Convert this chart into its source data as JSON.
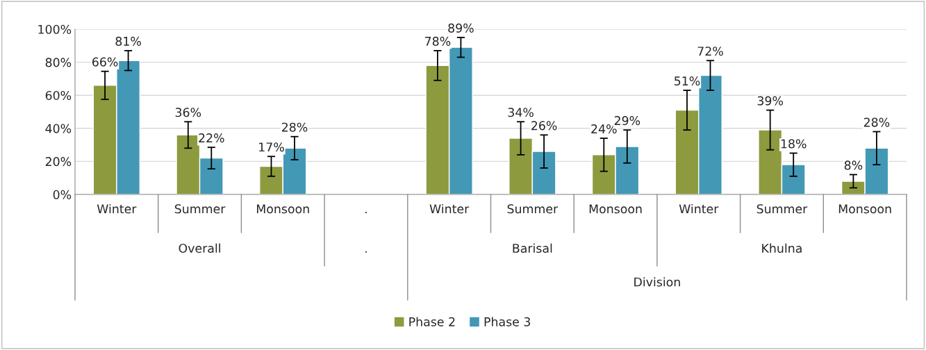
{
  "chart_data": {
    "type": "bar",
    "categories": [
      "Winter",
      "Summer",
      "Monsoon",
      ".",
      "Winter",
      "Summer",
      "Monsoon",
      "Winter",
      "Summer",
      "Monsoon"
    ],
    "series": [
      {
        "name": "Phase 2",
        "color": "#8e9a3e",
        "values": [
          66,
          36,
          17,
          null,
          78,
          34,
          24,
          51,
          39,
          8
        ],
        "errors": [
          8.5,
          8,
          6,
          null,
          9,
          10,
          10,
          12,
          12,
          4
        ],
        "value_labels": [
          "66%",
          "36%",
          "17%",
          null,
          "78%",
          "34%",
          "24%",
          "51%",
          "39%",
          "8%"
        ]
      },
      {
        "name": "Phase 3",
        "color": "#4398b6",
        "values": [
          81,
          22,
          28,
          null,
          89,
          26,
          29,
          72,
          18,
          28
        ],
        "errors": [
          6,
          6.5,
          7,
          null,
          6,
          10,
          10,
          9,
          7,
          10
        ],
        "value_labels": [
          "81%",
          "22%",
          "28%",
          null,
          "89%",
          "26%",
          "29%",
          "72%",
          "18%",
          "28%"
        ]
      }
    ],
    "annotations": [
      "Overall",
      ".",
      "Barisal",
      "Khulna",
      "Division"
    ],
    "ylim": [
      0,
      100
    ],
    "yticks": [
      {
        "value": 0,
        "label": "0%"
      },
      {
        "value": 20,
        "label": "20%"
      },
      {
        "value": 40,
        "label": "40%"
      },
      {
        "value": 60,
        "label": "60%"
      },
      {
        "value": 80,
        "label": "80%"
      },
      {
        "value": 100,
        "label": "100%"
      }
    ],
    "grid": "y",
    "legend": "bottom"
  }
}
